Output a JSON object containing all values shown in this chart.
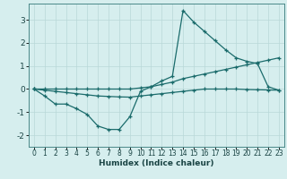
{
  "title": "",
  "xlabel": "Humidex (Indice chaleur)",
  "ylabel": "",
  "bg_color": "#d6eeee",
  "grid_color": "#b8d8d8",
  "line_color": "#1a6b6b",
  "marker": "+",
  "markersize": 3.5,
  "linewidth": 0.9,
  "xlim": [
    -0.5,
    23.5
  ],
  "ylim": [
    -2.5,
    3.7
  ],
  "xticks": [
    0,
    1,
    2,
    3,
    4,
    5,
    6,
    7,
    8,
    9,
    10,
    11,
    12,
    13,
    14,
    15,
    16,
    17,
    18,
    19,
    20,
    21,
    22,
    23
  ],
  "yticks": [
    -2,
    -1,
    0,
    1,
    2,
    3
  ],
  "line1_x": [
    0,
    1,
    2,
    3,
    4,
    5,
    6,
    7,
    8,
    9,
    10,
    11,
    12,
    13,
    14,
    15,
    16,
    17,
    18,
    19,
    20,
    21,
    22,
    23
  ],
  "line1_y": [
    0,
    -0.3,
    -0.65,
    -0.65,
    -0.85,
    -1.1,
    -1.6,
    -1.75,
    -1.75,
    -1.2,
    -0.1,
    0.1,
    0.35,
    0.55,
    3.4,
    2.9,
    2.5,
    2.1,
    1.7,
    1.35,
    1.2,
    1.1,
    0.1,
    -0.05
  ],
  "line2_x": [
    0,
    1,
    2,
    3,
    4,
    5,
    6,
    7,
    8,
    9,
    10,
    11,
    12,
    13,
    14,
    15,
    16,
    17,
    18,
    19,
    20,
    21,
    22,
    23
  ],
  "line2_y": [
    0,
    0,
    0,
    0,
    0,
    0,
    0,
    0,
    0,
    0,
    0.05,
    0.1,
    0.2,
    0.3,
    0.45,
    0.55,
    0.65,
    0.75,
    0.85,
    0.95,
    1.05,
    1.15,
    1.25,
    1.35
  ],
  "line3_x": [
    0,
    1,
    2,
    3,
    4,
    5,
    6,
    7,
    8,
    9,
    10,
    11,
    12,
    13,
    14,
    15,
    16,
    17,
    18,
    19,
    20,
    21,
    22,
    23
  ],
  "line3_y": [
    0,
    -0.05,
    -0.1,
    -0.15,
    -0.2,
    -0.25,
    -0.3,
    -0.32,
    -0.34,
    -0.35,
    -0.3,
    -0.25,
    -0.2,
    -0.15,
    -0.1,
    -0.05,
    0.0,
    0.0,
    0.0,
    0.0,
    -0.02,
    -0.03,
    -0.04,
    -0.05
  ],
  "xlabel_fontsize": 6.5,
  "xlabel_fontweight": "bold",
  "tick_fontsize": 5.5,
  "ytick_fontsize": 6.5,
  "spine_color": "#4a8888",
  "tick_color": "#1a4444"
}
